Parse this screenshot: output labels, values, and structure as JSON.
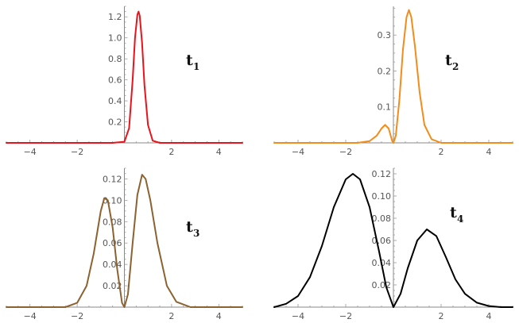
{
  "chart_data": [
    {
      "type": "line",
      "label_main": "t",
      "label_sub": "1",
      "color": "#e8141c",
      "xlim": [
        -5,
        5
      ],
      "ylim": [
        0,
        1.3
      ],
      "xticks": [
        -4,
        -2,
        2,
        4
      ],
      "xtick_labels": [
        "−4",
        "−2",
        "2",
        "4"
      ],
      "yticks": [
        0.2,
        0.4,
        0.6,
        0.8,
        1.0,
        1.2
      ],
      "ytick_labels": [
        "0.2",
        "0.4",
        "0.6",
        "0.8",
        "1.0",
        "1.2"
      ],
      "x": [
        -5,
        -1,
        -0.5,
        0,
        0.2,
        0.35,
        0.45,
        0.55,
        0.6,
        0.65,
        0.75,
        0.85,
        1.0,
        1.2,
        1.5,
        5
      ],
      "y": [
        0,
        0,
        0,
        0.01,
        0.14,
        0.6,
        1.0,
        1.22,
        1.25,
        1.21,
        0.95,
        0.55,
        0.17,
        0.02,
        0,
        0
      ]
    },
    {
      "type": "line",
      "label_main": "t",
      "label_sub": "2",
      "color": "#f28c1a",
      "xlim": [
        -5,
        5
      ],
      "ylim": [
        0,
        0.38
      ],
      "xticks": [
        -4,
        -2,
        2,
        4
      ],
      "xtick_labels": [
        "−4",
        "−2",
        "2",
        "4"
      ],
      "yticks": [
        0.1,
        0.2,
        0.3
      ],
      "ytick_labels": [
        "0.1",
        "0.2",
        "0.3"
      ],
      "x": [
        -5,
        -1.5,
        -1.0,
        -0.7,
        -0.5,
        -0.35,
        -0.2,
        -0.05,
        0,
        0.1,
        0.25,
        0.4,
        0.55,
        0.65,
        0.75,
        0.9,
        1.1,
        1.3,
        1.6,
        2.0,
        5
      ],
      "y": [
        0,
        0,
        0.005,
        0.02,
        0.04,
        0.05,
        0.04,
        0.005,
        0,
        0.02,
        0.12,
        0.26,
        0.35,
        0.37,
        0.35,
        0.27,
        0.14,
        0.05,
        0.01,
        0,
        0
      ]
    },
    {
      "type": "line",
      "label_main": "t",
      "label_sub": "3",
      "color": "#8b6230",
      "xlim": [
        -5,
        5
      ],
      "ylim": [
        0,
        0.13
      ],
      "xticks": [
        -4,
        -2,
        2,
        4
      ],
      "xtick_labels": [
        "−4",
        "−2",
        "2",
        "4"
      ],
      "yticks": [
        0.02,
        0.04,
        0.06,
        0.08,
        0.1,
        0.12
      ],
      "ytick_labels": [
        "0.02",
        "0.04",
        "0.06",
        "0.08",
        "0.10",
        "0.12"
      ],
      "x": [
        -5,
        -2.5,
        -2.0,
        -1.6,
        -1.3,
        -1.0,
        -0.85,
        -0.7,
        -0.5,
        -0.3,
        -0.1,
        0,
        0.15,
        0.35,
        0.55,
        0.75,
        0.9,
        1.1,
        1.4,
        1.8,
        2.2,
        2.8,
        5
      ],
      "y": [
        0,
        0,
        0.004,
        0.02,
        0.05,
        0.09,
        0.102,
        0.1,
        0.075,
        0.035,
        0.004,
        0,
        0.012,
        0.06,
        0.105,
        0.124,
        0.12,
        0.1,
        0.06,
        0.02,
        0.005,
        0,
        0
      ]
    },
    {
      "type": "line",
      "label_main": "t",
      "label_sub": "4",
      "color": "#000000",
      "xlim": [
        -5,
        5
      ],
      "ylim": [
        0,
        0.125
      ],
      "xticks": [
        -4,
        -2,
        2,
        4
      ],
      "xtick_labels": [
        "−4",
        "−2",
        "2",
        "4"
      ],
      "yticks": [
        0.02,
        0.04,
        0.06,
        0.08,
        0.1,
        0.12
      ],
      "ytick_labels": [
        "0.02",
        "0.04",
        "0.06",
        "0.08",
        "0.10",
        "0.12"
      ],
      "x": [
        -5,
        -4.5,
        -4.0,
        -3.5,
        -3.0,
        -2.5,
        -2.0,
        -1.7,
        -1.4,
        -1.0,
        -0.6,
        -0.3,
        0,
        0.3,
        0.6,
        1.0,
        1.4,
        1.8,
        2.2,
        2.6,
        3.0,
        3.5,
        4.0,
        4.5,
        5
      ],
      "y": [
        0,
        0.003,
        0.01,
        0.027,
        0.055,
        0.09,
        0.115,
        0.12,
        0.115,
        0.09,
        0.05,
        0.018,
        0,
        0.012,
        0.035,
        0.06,
        0.07,
        0.064,
        0.045,
        0.025,
        0.012,
        0.004,
        0.001,
        0,
        0
      ]
    }
  ]
}
